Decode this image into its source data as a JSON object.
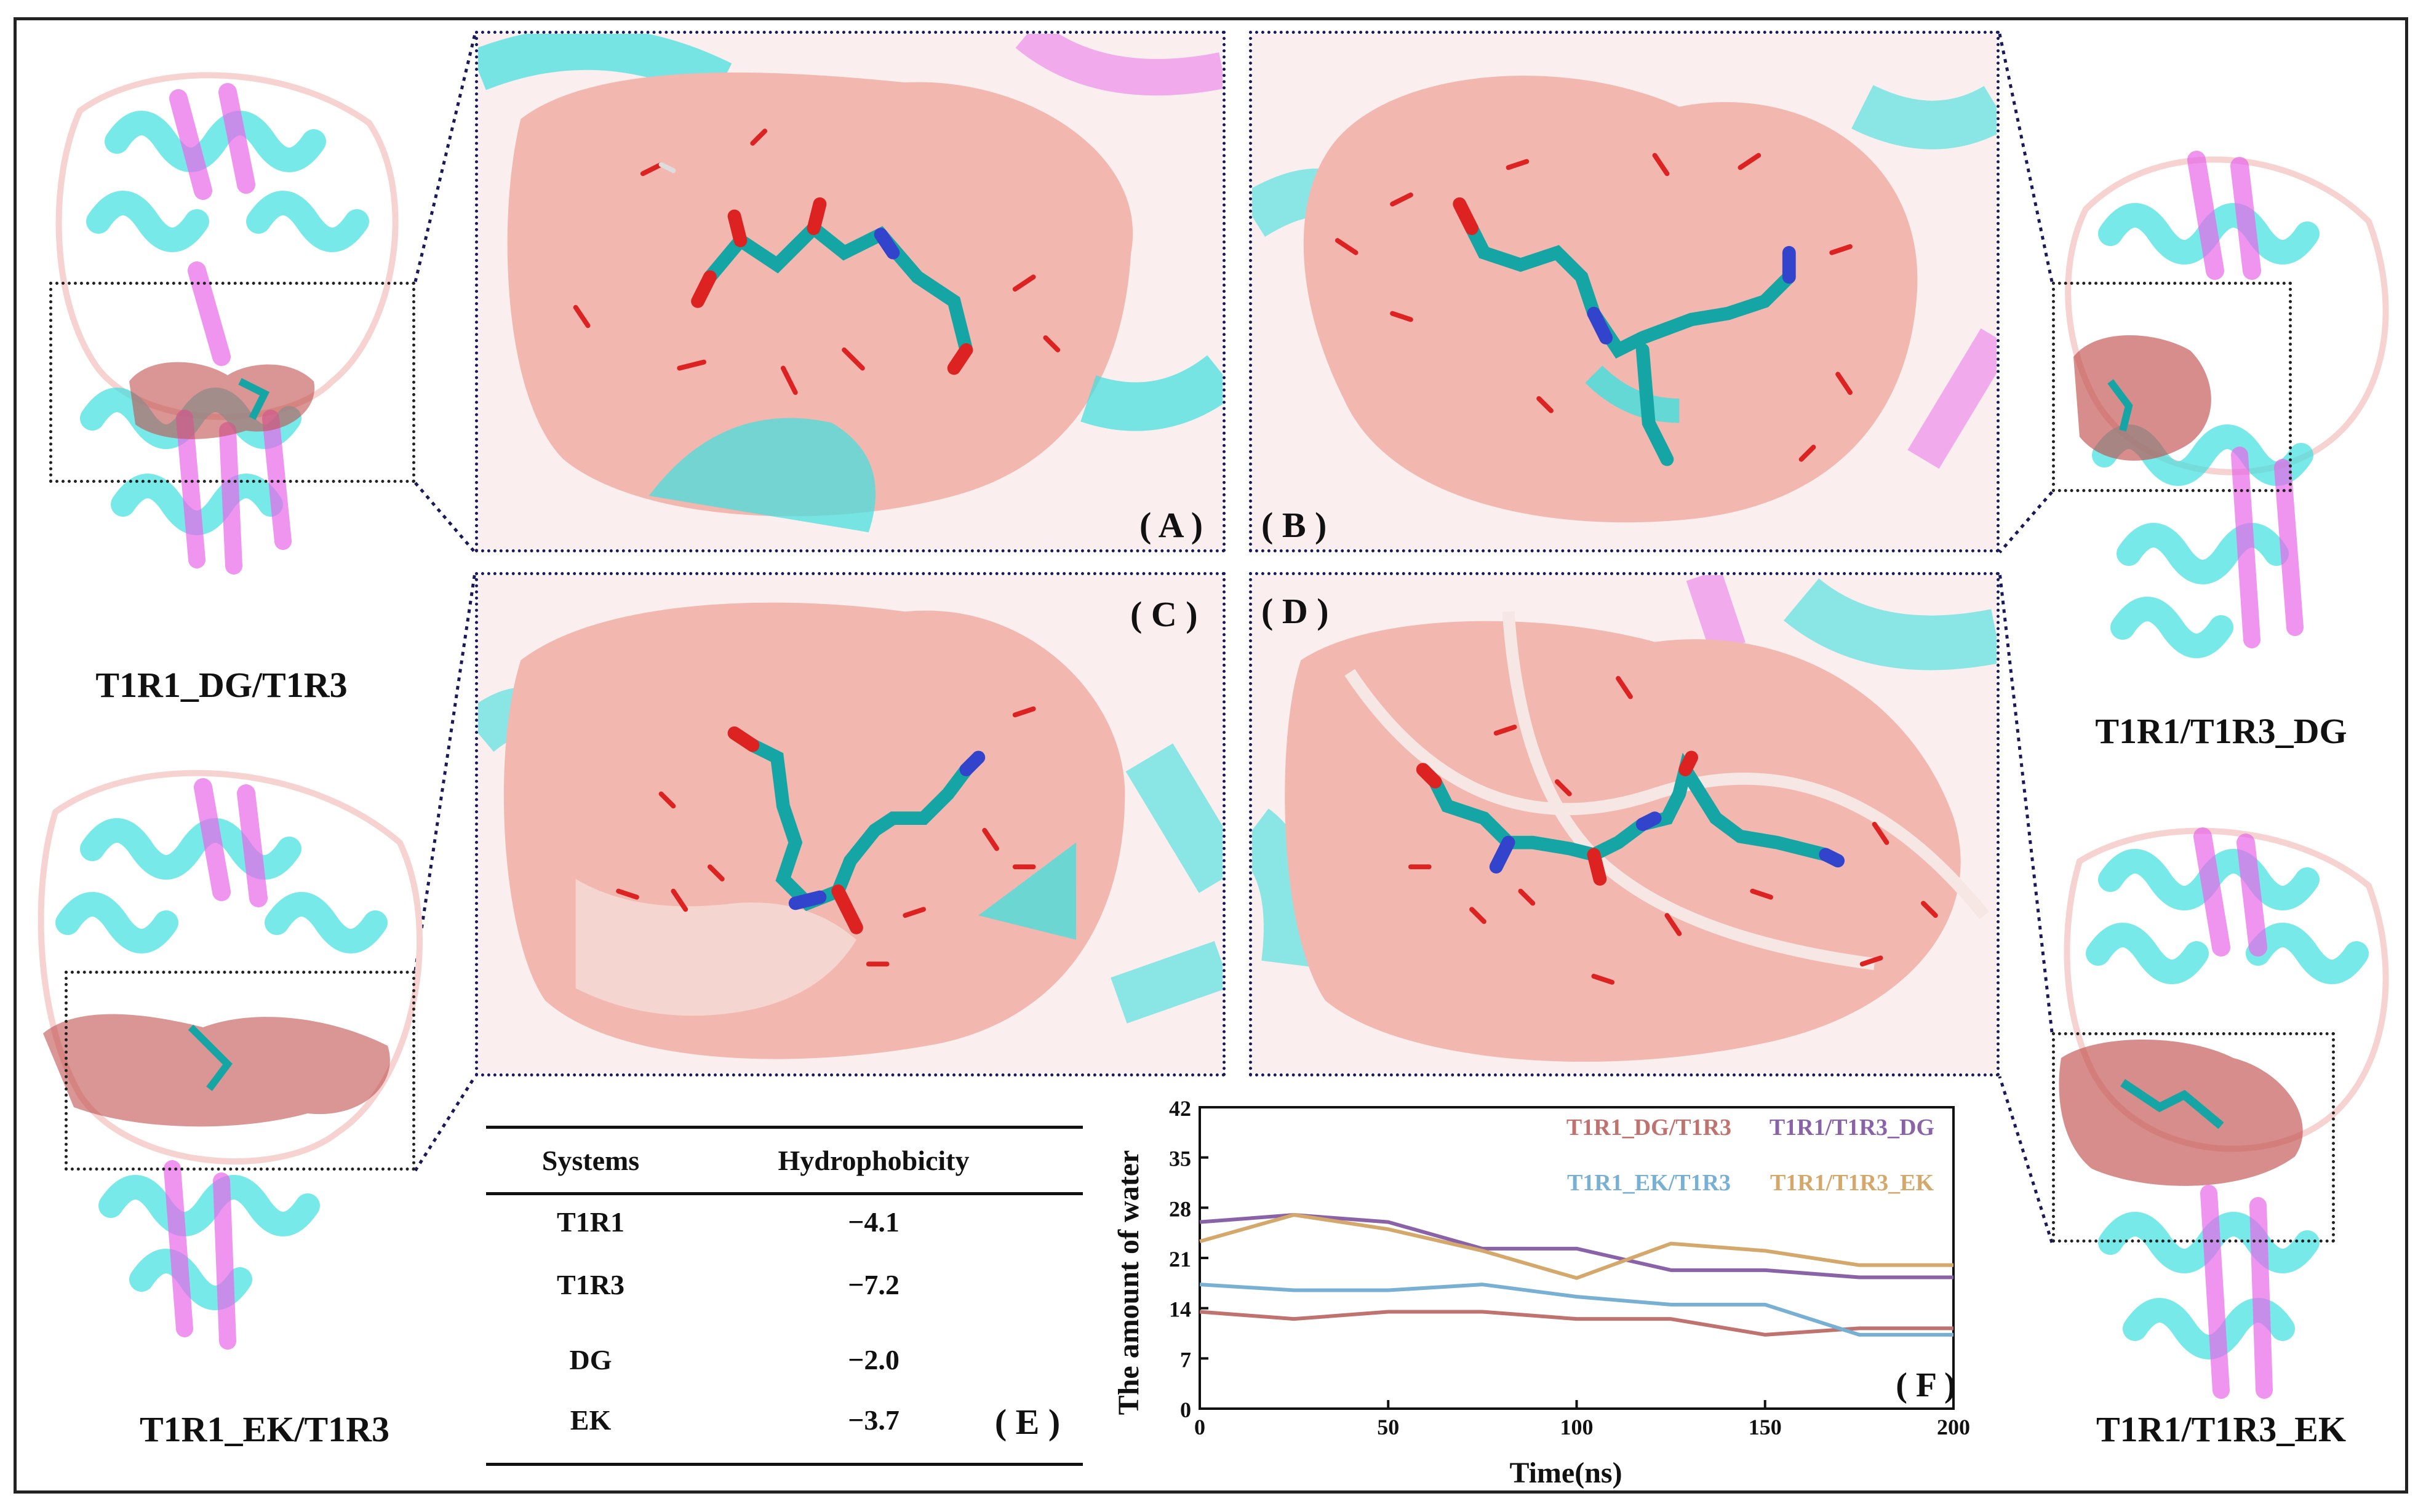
{
  "colors": {
    "surface": "#f2b8b0",
    "helix_cyan": "#3fe0df",
    "sheet_magenta": "#e866e8",
    "coil_pink": "#f6d3d0",
    "ligand_cyan": "#16a5a5",
    "nitrogen": "#3344cc",
    "oxygen": "#dd2222",
    "mesh": "#c0504d"
  },
  "systems": {
    "top_left": "T1R1_DG/T1R3",
    "bottom_left": "T1R1_EK/T1R3",
    "top_right": "T1R1/T1R3_DG",
    "bottom_right": "T1R1/T1R3_EK"
  },
  "panels": {
    "A": "( A )",
    "B": "( B )",
    "C": "( C )",
    "D": "( D )",
    "E": "( E )",
    "F": "( F )"
  },
  "table": {
    "headers": [
      "Systems",
      "Hydrophobicity"
    ],
    "rows": [
      {
        "system": "T1R1",
        "value": "−4.1"
      },
      {
        "system": "T1R3",
        "value": "−7.2"
      },
      {
        "system": "DG",
        "value": "−2.0"
      },
      {
        "system": "EK",
        "value": "−3.7"
      }
    ]
  },
  "chart_data": {
    "type": "line",
    "xlabel": "Time(ns)",
    "ylabel": "The amount of water",
    "xlim": [
      0,
      200
    ],
    "ylim": [
      0,
      42
    ],
    "xticks": [
      "0",
      "50",
      "100",
      "150",
      "200"
    ],
    "yticks": [
      "0",
      "7",
      "14",
      "21",
      "28",
      "35",
      "42"
    ],
    "x": [
      0,
      25,
      50,
      75,
      100,
      125,
      150,
      175,
      200
    ],
    "series": [
      {
        "name": "T1R1_DG/T1R3",
        "color": "#c0726f",
        "values": [
          13.5,
          12.5,
          13.5,
          13.5,
          12.5,
          12.5,
          10.3,
          11.2,
          11.2
        ]
      },
      {
        "name": "T1R1/T1R3_DG",
        "color": "#8a62a8",
        "values": [
          26,
          27,
          26,
          22.3,
          22.3,
          19.3,
          19.3,
          18.3,
          18.3
        ]
      },
      {
        "name": "T1R1_EK/T1R3",
        "color": "#78b0d4",
        "values": [
          17.3,
          16.5,
          16.5,
          17.3,
          15.6,
          14.5,
          14.5,
          10.3,
          10.3
        ]
      },
      {
        "name": "T1R1/T1R3_EK",
        "color": "#d4a86a",
        "values": [
          23.3,
          27,
          25,
          22,
          18.2,
          23,
          22,
          20,
          20
        ]
      }
    ]
  }
}
